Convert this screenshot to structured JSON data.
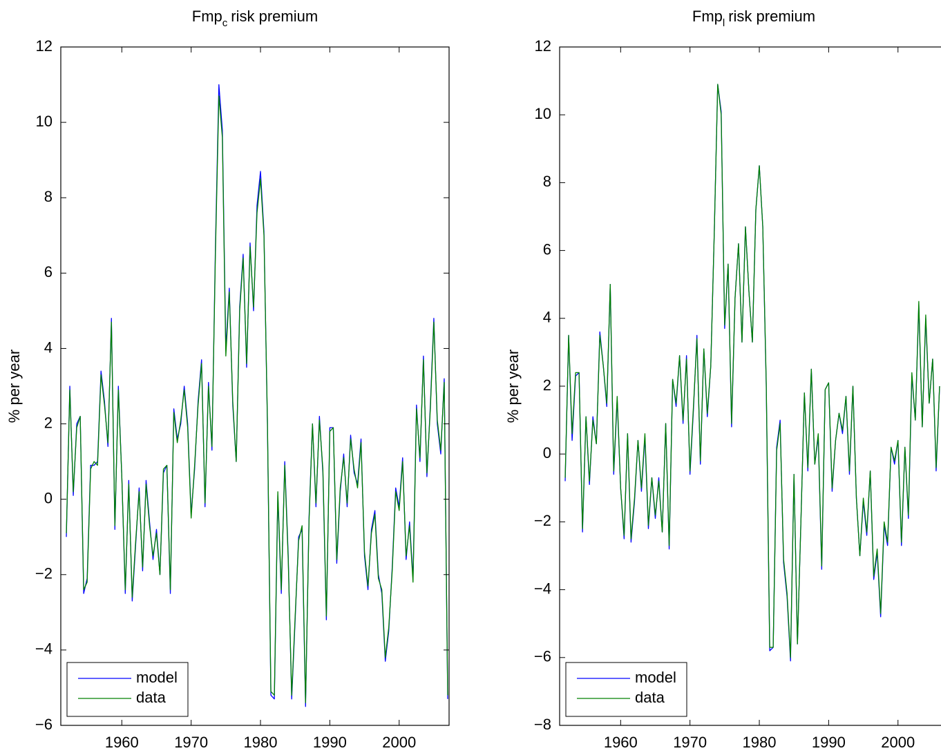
{
  "chart_data": [
    {
      "type": "line",
      "title": "Fmp",
      "title_subscript": "c",
      "title_suffix": "risk premium",
      "ylabel": "% per year",
      "xlim": [
        1951.2,
        2007.2
      ],
      "xticks": [
        1960,
        1970,
        1980,
        1990,
        2000
      ],
      "ylim": [
        -6,
        12
      ],
      "yticks": [
        {
          "value": -6,
          "label": "−6"
        },
        {
          "value": -4,
          "label": "−4"
        },
        {
          "value": -2,
          "label": "−2"
        },
        0,
        2,
        4,
        6,
        8,
        10,
        12
      ],
      "legend": "lower left",
      "x": [
        1952,
        1952.5,
        1953,
        1953.5,
        1954,
        1954.5,
        1955,
        1955.5,
        1956,
        1956.5,
        1957,
        1957.5,
        1958,
        1958.5,
        1959,
        1959.5,
        1960,
        1960.5,
        1961,
        1961.5,
        1962,
        1962.5,
        1963,
        1963.5,
        1964,
        1964.5,
        1965,
        1965.5,
        1966,
        1966.5,
        1967,
        1967.5,
        1968,
        1968.5,
        1969,
        1969.5,
        1970,
        1970.5,
        1971,
        1971.5,
        1972,
        1972.5,
        1973,
        1973.5,
        1974,
        1974.5,
        1975,
        1975.5,
        1976,
        1976.5,
        1977,
        1977.5,
        1978,
        1978.5,
        1979,
        1979.5,
        1980,
        1980.5,
        1981,
        1981.5,
        1982,
        1982.5,
        1983,
        1983.5,
        1984,
        1984.5,
        1985,
        1985.5,
        1986,
        1986.5,
        1987,
        1987.5,
        1988,
        1988.5,
        1989,
        1989.5,
        1990,
        1990.5,
        1991,
        1991.5,
        1992,
        1992.5,
        1993,
        1993.5,
        1994,
        1994.5,
        1995,
        1995.5,
        1996,
        1996.5,
        1997,
        1997.5,
        1998,
        1998.5,
        1999,
        1999.5,
        2000,
        2000.5,
        2001,
        2001.5,
        2002,
        2002.5,
        2003,
        2003.5,
        2004,
        2004.5,
        2005,
        2005.5,
        2006,
        2006.5,
        2007
      ],
      "series": [
        {
          "name": "model",
          "color": "#0000ff",
          "values": [
            -1.0,
            3.0,
            0.1,
            2.0,
            2.2,
            -2.5,
            -2.1,
            0.9,
            0.9,
            1.0,
            3.4,
            2.6,
            1.4,
            4.8,
            -0.8,
            3.0,
            0.6,
            -2.5,
            0.5,
            -2.7,
            -1.2,
            0.3,
            -1.9,
            0.5,
            -0.6,
            -1.6,
            -0.8,
            -2.0,
            0.7,
            0.9,
            -2.5,
            2.4,
            1.6,
            2.0,
            3.0,
            2.0,
            -0.4,
            0.8,
            2.6,
            3.7,
            -0.2,
            3.1,
            1.3,
            6.7,
            11.0,
            9.8,
            4.0,
            5.6,
            2.5,
            1.0,
            5.1,
            6.5,
            3.5,
            6.8,
            5.0,
            7.8,
            8.7,
            7.1,
            2.0,
            -5.2,
            -5.3,
            0.1,
            -2.5,
            1.0,
            -1.5,
            -5.3,
            -3.2,
            -1.0,
            -0.8,
            -5.5,
            -0.5,
            2.0,
            -0.2,
            2.2,
            0.7,
            -3.2,
            1.9,
            1.9,
            -1.7,
            0.2,
            1.2,
            -0.2,
            1.7,
            0.7,
            0.4,
            1.6,
            -1.5,
            -2.4,
            -0.8,
            -0.3,
            -2.0,
            -2.5,
            -4.3,
            -3.5,
            -1.8,
            0.3,
            -0.2,
            1.1,
            -1.6,
            -0.6,
            -2.1,
            2.5,
            1.0,
            3.8,
            0.6,
            2.5,
            4.8,
            2.0,
            1.2,
            3.2,
            -5.3
          ]
        },
        {
          "name": "data",
          "color": "#008000",
          "values": [
            -0.9,
            2.9,
            0.2,
            1.9,
            2.2,
            -2.4,
            -2.2,
            0.8,
            1.0,
            0.9,
            3.3,
            2.5,
            1.5,
            4.7,
            -0.7,
            2.9,
            0.6,
            -2.4,
            0.4,
            -2.6,
            -1.1,
            0.2,
            -1.8,
            0.4,
            -0.7,
            -1.5,
            -0.9,
            -2.0,
            0.8,
            0.9,
            -2.4,
            2.3,
            1.5,
            2.1,
            2.9,
            1.9,
            -0.5,
            0.9,
            2.5,
            3.6,
            -0.1,
            3.0,
            1.4,
            6.5,
            10.7,
            9.6,
            3.8,
            5.5,
            2.6,
            1.0,
            5.0,
            6.4,
            3.6,
            6.7,
            5.1,
            7.6,
            8.5,
            7.0,
            2.1,
            -5.1,
            -5.2,
            0.2,
            -2.4,
            0.9,
            -1.6,
            -5.2,
            -3.1,
            -1.1,
            -0.7,
            -5.4,
            -0.6,
            2.0,
            -0.1,
            2.1,
            0.8,
            -3.1,
            1.8,
            1.9,
            -1.6,
            0.3,
            1.1,
            -0.1,
            1.6,
            0.8,
            0.3,
            1.5,
            -1.4,
            -2.3,
            -0.9,
            -0.4,
            -2.1,
            -2.4,
            -4.2,
            -3.4,
            -1.9,
            0.2,
            -0.3,
            1.0,
            -1.5,
            -0.7,
            -2.2,
            2.4,
            1.1,
            3.7,
            0.7,
            2.4,
            4.7,
            2.1,
            1.3,
            3.1,
            -5.2
          ]
        }
      ]
    },
    {
      "type": "line",
      "title": "Fmp",
      "title_subscript": "l",
      "title_suffix": "risk premium",
      "ylabel": "% per year",
      "xlim": [
        1951.2,
        2007.2
      ],
      "xticks": [
        1960,
        1970,
        1980,
        1990,
        2000
      ],
      "ylim": [
        -8,
        12
      ],
      "yticks": [
        {
          "value": -8,
          "label": "−8"
        },
        {
          "value": -6,
          "label": "−6"
        },
        {
          "value": -4,
          "label": "−4"
        },
        {
          "value": -2,
          "label": "−2"
        },
        0,
        2,
        4,
        6,
        8,
        10,
        12
      ],
      "legend": "lower left",
      "x": [
        1952,
        1952.5,
        1953,
        1953.5,
        1954,
        1954.5,
        1955,
        1955.5,
        1956,
        1956.5,
        1957,
        1957.5,
        1958,
        1958.5,
        1959,
        1959.5,
        1960,
        1960.5,
        1961,
        1961.5,
        1962,
        1962.5,
        1963,
        1963.5,
        1964,
        1964.5,
        1965,
        1965.5,
        1966,
        1966.5,
        1967,
        1967.5,
        1968,
        1968.5,
        1969,
        1969.5,
        1970,
        1970.5,
        1971,
        1971.5,
        1972,
        1972.5,
        1973,
        1973.5,
        1974,
        1974.5,
        1975,
        1975.5,
        1976,
        1976.5,
        1977,
        1977.5,
        1978,
        1978.5,
        1979,
        1979.5,
        1980,
        1980.5,
        1981,
        1981.5,
        1982,
        1982.5,
        1983,
        1983.5,
        1984,
        1984.5,
        1985,
        1985.5,
        1986,
        1986.5,
        1987,
        1987.5,
        1988,
        1988.5,
        1989,
        1989.5,
        1990,
        1990.5,
        1991,
        1991.5,
        1992,
        1992.5,
        1993,
        1993.5,
        1994,
        1994.5,
        1995,
        1995.5,
        1996,
        1996.5,
        1997,
        1997.5,
        1998,
        1998.5,
        1999,
        1999.5,
        2000,
        2000.5,
        2001,
        2001.5,
        2002,
        2002.5,
        2003,
        2003.5,
        2004,
        2004.5,
        2005,
        2005.5,
        2006
      ],
      "series": [
        {
          "name": "model",
          "color": "#0000ff",
          "values": [
            -0.8,
            3.5,
            0.4,
            2.3,
            2.4,
            -2.3,
            1.1,
            -0.9,
            1.1,
            0.3,
            3.6,
            2.6,
            1.4,
            5.0,
            -0.6,
            1.6,
            -1.0,
            -2.5,
            0.6,
            -2.6,
            -1.4,
            0.4,
            -1.1,
            0.5,
            -2.2,
            -0.7,
            -1.9,
            -0.7,
            -2.3,
            0.9,
            -2.8,
            2.2,
            1.4,
            2.9,
            0.9,
            2.9,
            -0.6,
            1.3,
            3.5,
            -0.3,
            3.1,
            1.1,
            2.6,
            6.5,
            10.9,
            10.1,
            3.7,
            5.6,
            0.8,
            4.6,
            6.2,
            3.3,
            6.7,
            4.8,
            3.3,
            7.2,
            8.5,
            6.7,
            2.0,
            -5.8,
            -5.7,
            0.2,
            1.0,
            -3.2,
            -4.2,
            -6.1,
            -0.6,
            -5.6,
            -2.0,
            1.8,
            -0.5,
            2.5,
            -0.3,
            0.5,
            -3.4,
            1.9,
            2.1,
            -1.1,
            0.4,
            1.2,
            0.6,
            1.7,
            -0.6,
            2.0,
            -1.3,
            -3.0,
            -1.4,
            -2.4,
            -0.5,
            -3.7,
            -2.9,
            -4.8,
            -2.1,
            -2.7,
            0.2,
            -0.3,
            0.4,
            -2.7,
            0.2,
            -1.9,
            2.3,
            1.0,
            4.4,
            0.8,
            4.0,
            1.5,
            2.8,
            -0.5,
            2.0
          ]
        },
        {
          "name": "data",
          "color": "#008000",
          "values": [
            -0.7,
            3.5,
            0.6,
            2.4,
            2.4,
            -2.2,
            1.1,
            -0.8,
            1.0,
            0.3,
            3.5,
            2.6,
            1.5,
            5.0,
            -0.5,
            1.7,
            -1.0,
            -2.4,
            0.6,
            -2.5,
            -1.3,
            0.4,
            -1.0,
            0.6,
            -2.1,
            -0.7,
            -1.8,
            -0.8,
            -2.3,
            0.9,
            -2.7,
            2.2,
            1.5,
            2.9,
            1.0,
            2.8,
            -0.5,
            1.4,
            3.4,
            -0.2,
            3.1,
            1.2,
            2.6,
            6.5,
            10.9,
            10.0,
            3.8,
            5.6,
            0.9,
            4.6,
            6.2,
            3.3,
            6.7,
            4.8,
            3.3,
            7.2,
            8.5,
            6.7,
            2.1,
            -5.7,
            -5.7,
            0.1,
            0.9,
            -3.1,
            -4.1,
            -6.0,
            -0.6,
            -5.6,
            -2.0,
            1.8,
            -0.4,
            2.5,
            -0.3,
            0.6,
            -3.3,
            1.9,
            2.1,
            -1.0,
            0.4,
            1.2,
            0.7,
            1.7,
            -0.5,
            2.0,
            -1.3,
            -3.0,
            -1.3,
            -2.3,
            -0.5,
            -3.6,
            -2.8,
            -4.7,
            -2.0,
            -2.6,
            0.2,
            -0.2,
            0.4,
            -2.6,
            0.2,
            -1.8,
            2.4,
            1.0,
            4.5,
            0.8,
            4.1,
            1.5,
            2.8,
            -0.4,
            2.0
          ]
        }
      ]
    }
  ]
}
